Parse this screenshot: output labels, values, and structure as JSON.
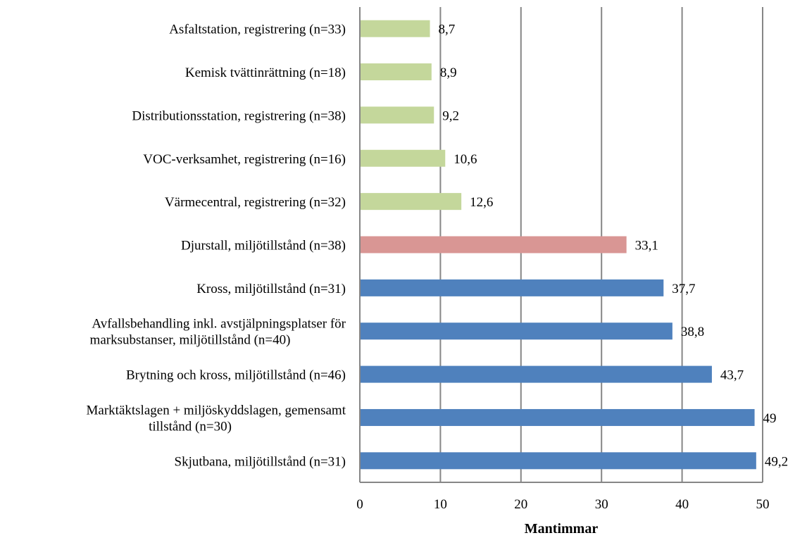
{
  "chart_data": {
    "type": "bar",
    "orientation": "horizontal",
    "title": "",
    "xlabel": "Mantimmar",
    "ylabel": "",
    "xlim": [
      0,
      50
    ],
    "xticks": [
      "0",
      "10",
      "20",
      "30",
      "40",
      "50"
    ],
    "grid": "vertical",
    "legend": "none",
    "categories": [
      [
        "Asfaltstation, registrering (n=33)"
      ],
      [
        "Kemisk tvättinrättning (n=18)"
      ],
      [
        "Distributionsstation, registrering (n=38)"
      ],
      [
        "VOC-verksamhet, registrering (n=16)"
      ],
      [
        "Värmecentral, registrering (n=32)"
      ],
      [
        "Djurstall, miljötillstånd (n=38)"
      ],
      [
        "Kross, miljötillstånd (n=31)"
      ],
      [
        "Avfallsbehandling inkl. avstjälpningsplatser för",
        "marksubstanser, miljötillstånd (n=40)"
      ],
      [
        "Brytning och kross, miljötillstånd (n=46)"
      ],
      [
        "Marktäktslagen + miljöskyddslagen, gemensamt",
        "tillstånd (n=30)"
      ],
      [
        "Skjutbana, miljötillstånd (n=31)"
      ]
    ],
    "values": [
      8.7,
      8.9,
      9.2,
      10.6,
      12.6,
      33.1,
      37.7,
      38.8,
      43.7,
      49,
      49.2
    ],
    "value_labels": [
      "8,7",
      "8,9",
      "9,2",
      "10,6",
      "12,6",
      "33,1",
      "37,7",
      "38,8",
      "43,7",
      "49",
      "49,2"
    ],
    "bar_groups": [
      "registrering",
      "registrering",
      "registrering",
      "registrering",
      "registrering",
      "miljötillstånd-djurstall",
      "miljötillstånd",
      "miljötillstånd",
      "miljötillstånd",
      "miljötillstånd",
      "miljötillstånd"
    ],
    "colors": {
      "registrering": "#c4d79b",
      "miljötillstånd-djurstall": "#d99694",
      "miljötillstånd": "#4f81bd",
      "grid": "#868686"
    }
  }
}
